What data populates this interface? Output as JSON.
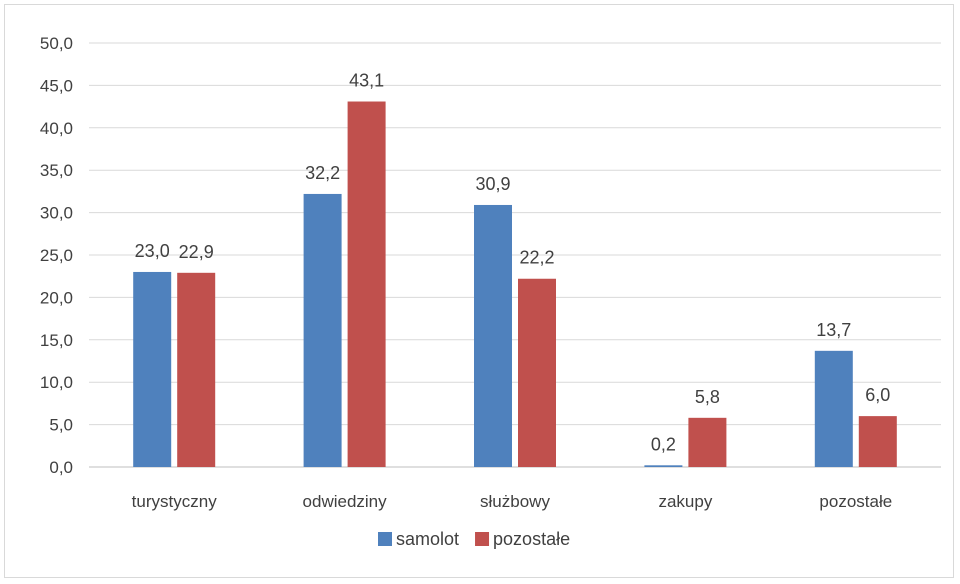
{
  "chart_data": {
    "type": "bar",
    "categories": [
      "turystyczny",
      "odwiedziny",
      "służbowy",
      "zakupy",
      "pozostałe"
    ],
    "series": [
      {
        "name": "samolot",
        "values": [
          23.0,
          32.2,
          30.9,
          0.2,
          13.7
        ],
        "labels": [
          "23,0",
          "32,2",
          "30,9",
          "0,2",
          "13,7"
        ],
        "color": "#4f81bd"
      },
      {
        "name": "pozostałe",
        "values": [
          22.9,
          43.1,
          22.2,
          5.8,
          6.0
        ],
        "labels": [
          "22,9",
          "43,1",
          "22,2",
          "5,8",
          "6,0"
        ],
        "color": "#c0504d"
      }
    ],
    "ylim": [
      0,
      50
    ],
    "yticks": [
      0,
      5,
      10,
      15,
      20,
      25,
      30,
      35,
      40,
      45,
      50
    ],
    "ytick_labels": [
      "0,0",
      "5,0",
      "10,0",
      "15,0",
      "20,0",
      "25,0",
      "30,0",
      "35,0",
      "40,0",
      "45,0",
      "50,0"
    ],
    "grid": true,
    "legend_position": "bottom",
    "gridline_color": "#d9d9d9",
    "axis_color": "#bfbfbf"
  }
}
